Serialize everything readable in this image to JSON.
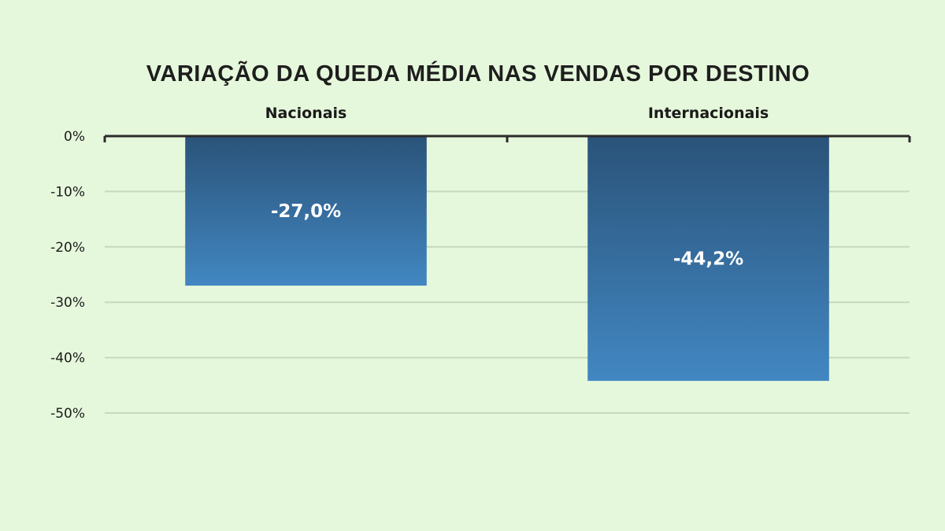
{
  "chart_data": {
    "type": "bar",
    "title": "VARIAÇÃO DA QUEDA MÉDIA NAS VENDAS POR DESTINO",
    "categories": [
      "Nacionais",
      "Internacionais"
    ],
    "values": [
      -27.0,
      -44.2
    ],
    "data_labels": [
      "-27,0%",
      "-44,2%"
    ],
    "xlabel": "",
    "ylabel": "",
    "ylim": [
      -50,
      0
    ],
    "yticks": [
      0,
      -10,
      -20,
      -30,
      -40,
      -50
    ],
    "ytick_labels": [
      "0%",
      "-10%",
      "-20%",
      "-30%",
      "-40%",
      "-50%"
    ],
    "category_axis_position": "top",
    "grid": true,
    "legend": "none",
    "colors": {
      "bar_top": "#2a5379",
      "bar_bottom": "#4287c2",
      "grid": "#c5d9bd",
      "axis": "#2b2b2b",
      "background": "#e6f8dc"
    }
  }
}
